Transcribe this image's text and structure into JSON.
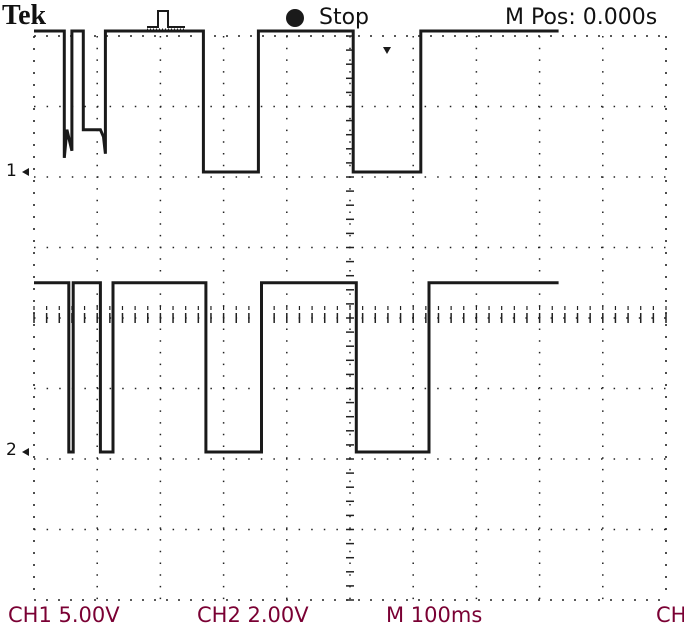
{
  "header": {
    "brand": "Tek",
    "trigger_icon": "pulse-trigger-icon",
    "acquisition_icon": "stop-circle-icon",
    "status": "Stop",
    "m_pos": "M Pos: 0.000s"
  },
  "footer": {
    "ch1_scale": "CH1  5.00V",
    "ch2_scale": "CH2  2.00V",
    "time_scale": "M 100ms",
    "overflow": "CH"
  },
  "channel_markers": {
    "ch1": "1",
    "ch2": "2"
  },
  "colors": {
    "background": "#ffffff",
    "trace": "#1a1a1a",
    "grid": "#222222",
    "footer_text": "#7a0033",
    "ground_marker": "#b00040"
  },
  "display": {
    "divisions_x": 10,
    "divisions_y": 8,
    "ch1_volts_per_div": 5.0,
    "ch2_volts_per_div": 2.0,
    "seconds_per_div": 0.1,
    "trigger_position_s": 0.0
  },
  "traces": [
    {
      "channel": "CH1",
      "points": [
        [
          -0.5,
          10.0
        ],
        [
          -0.452,
          10.0
        ],
        [
          -0.452,
          1.0
        ],
        [
          -0.448,
          3.0
        ],
        [
          -0.44,
          1.5
        ],
        [
          -0.44,
          10.0
        ],
        [
          -0.422,
          10.0
        ],
        [
          -0.422,
          3.0
        ],
        [
          -0.395,
          3.0
        ],
        [
          -0.39,
          2.5
        ],
        [
          -0.387,
          1.3
        ],
        [
          -0.387,
          10.0
        ],
        [
          -0.232,
          10.0
        ],
        [
          -0.232,
          0.0
        ],
        [
          -0.145,
          0.0
        ],
        [
          -0.145,
          10.0
        ],
        [
          0.005,
          10.0
        ],
        [
          0.005,
          0.0
        ],
        [
          0.112,
          0.0
        ],
        [
          0.112,
          10.0
        ],
        [
          0.33,
          10.0
        ]
      ]
    },
    {
      "channel": "CH2",
      "points": [
        [
          -0.5,
          4.8
        ],
        [
          -0.445,
          4.8
        ],
        [
          -0.445,
          0.0
        ],
        [
          -0.438,
          0.0
        ],
        [
          -0.438,
          4.8
        ],
        [
          -0.395,
          4.8
        ],
        [
          -0.395,
          0.0
        ],
        [
          -0.375,
          0.0
        ],
        [
          -0.375,
          4.8
        ],
        [
          -0.228,
          4.8
        ],
        [
          -0.228,
          0.0
        ],
        [
          -0.14,
          0.0
        ],
        [
          -0.14,
          4.8
        ],
        [
          0.01,
          4.8
        ],
        [
          0.01,
          0.0
        ],
        [
          0.125,
          0.0
        ],
        [
          0.125,
          4.8
        ],
        [
          0.33,
          4.8
        ]
      ]
    }
  ]
}
